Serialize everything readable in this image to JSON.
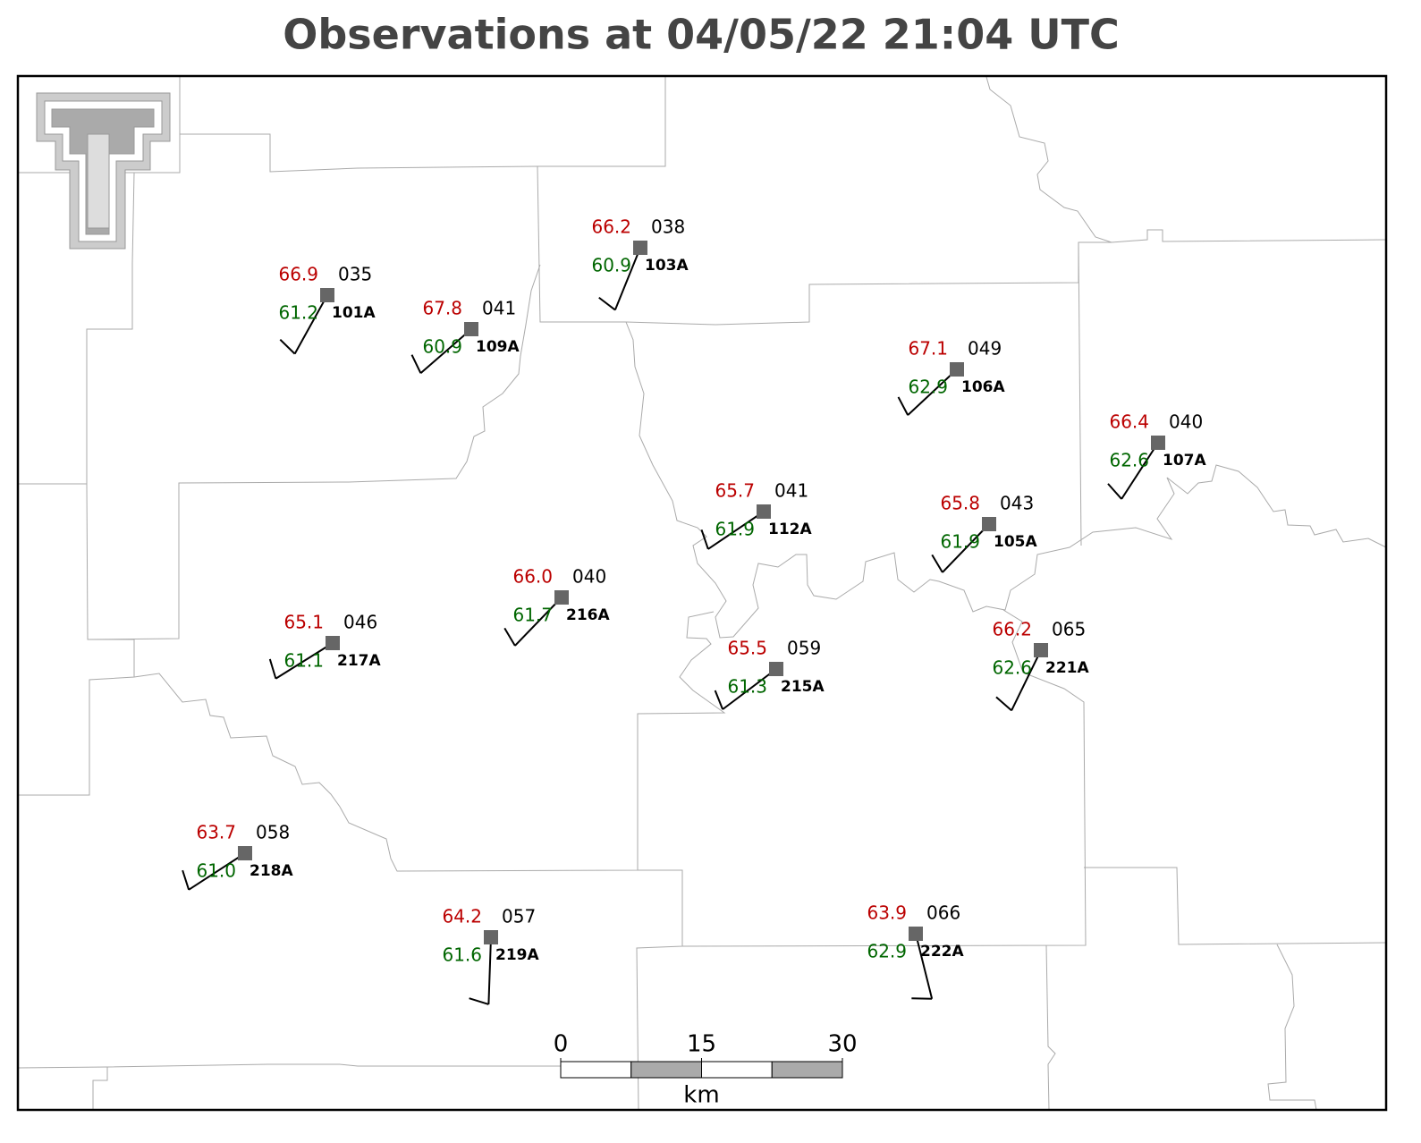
{
  "title": "Observations at 04/05/22 21:04 UTC",
  "stations": [
    {
      "id": "101A",
      "temperature": "66.9",
      "dewpoint": "61.2",
      "pressure": "035",
      "wind_direction": 209,
      "wind_speed": 10
    },
    {
      "id": "109A",
      "temperature": "67.8",
      "dewpoint": "60.9",
      "pressure": "041",
      "wind_direction": 229,
      "wind_speed": 10
    },
    {
      "id": "103A",
      "temperature": "66.2",
      "dewpoint": "60.9",
      "pressure": "038",
      "wind_direction": 202,
      "wind_speed": 10
    },
    {
      "id": "106A",
      "temperature": "67.1",
      "dewpoint": "62.9",
      "pressure": "049",
      "wind_direction": 227,
      "wind_speed": 10
    },
    {
      "id": "107A",
      "temperature": "66.4",
      "dewpoint": "62.6",
      "pressure": "040",
      "wind_direction": 213,
      "wind_speed": 10
    },
    {
      "id": "112A",
      "temperature": "65.7",
      "dewpoint": "61.9",
      "pressure": "041",
      "wind_direction": 236,
      "wind_speed": 10
    },
    {
      "id": "105A",
      "temperature": "65.8",
      "dewpoint": "61.9",
      "pressure": "043",
      "wind_direction": 224,
      "wind_speed": 10
    },
    {
      "id": "216A",
      "temperature": "66.0",
      "dewpoint": "61.7",
      "pressure": "040",
      "wind_direction": 224,
      "wind_speed": 10
    },
    {
      "id": "217A",
      "temperature": "65.1",
      "dewpoint": "61.1",
      "pressure": "046",
      "wind_direction": 238,
      "wind_speed": 10
    },
    {
      "id": "215A",
      "temperature": "65.5",
      "dewpoint": "61.3",
      "pressure": "059",
      "wind_direction": 233,
      "wind_speed": 10
    },
    {
      "id": "221A",
      "temperature": "66.2",
      "dewpoint": "62.6",
      "pressure": "065",
      "wind_direction": 206,
      "wind_speed": 10
    },
    {
      "id": "218A",
      "temperature": "63.7",
      "dewpoint": "61.0",
      "pressure": "058",
      "wind_direction": 237,
      "wind_speed": 10
    },
    {
      "id": "219A",
      "temperature": "64.2",
      "dewpoint": "61.6",
      "pressure": "057",
      "wind_direction": 182,
      "wind_speed": 10
    },
    {
      "id": "222A",
      "temperature": "63.9",
      "dewpoint": "62.9",
      "pressure": "066",
      "wind_direction": 166,
      "wind_speed": 10
    }
  ],
  "scale_bar": {
    "ticks": [
      0,
      15,
      30
    ],
    "unit": "km"
  }
}
